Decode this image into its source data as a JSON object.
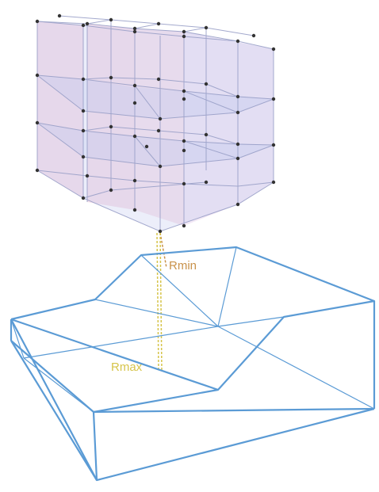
{
  "labels": {
    "rmin": "Rmin",
    "rmax": "Rmax"
  },
  "colors": {
    "lattice_edge": "#9aa0c8",
    "lattice_fill_pink": "#e9a9c6",
    "lattice_fill_blue": "#b9c3ee",
    "lattice_node": "#333333",
    "terrain_edge": "#5b9bd5",
    "rmin_color": "#c9924a",
    "rmax_color": "#d6c44a"
  }
}
